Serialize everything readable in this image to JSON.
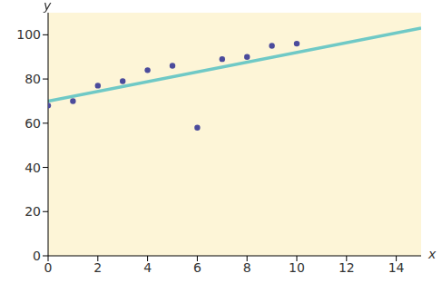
{
  "chart_data": {
    "type": "scatter",
    "x_label": "x",
    "y_label": "y",
    "xlim": [
      0,
      15
    ],
    "xticks": [
      0,
      2,
      4,
      6,
      8,
      10,
      12,
      14
    ],
    "ylim": [
      0,
      110
    ],
    "yticks": [
      0,
      20,
      40,
      60,
      80,
      100
    ],
    "grid": false,
    "series": [
      {
        "type": "scatter",
        "color": "#4b4b9c",
        "marker": "circle",
        "x": [
          0,
          1,
          2,
          3,
          4,
          5,
          6,
          7,
          8,
          9,
          10
        ],
        "values": [
          68,
          70,
          77,
          79,
          84,
          86,
          58,
          89,
          90,
          95,
          96
        ]
      },
      {
        "type": "line",
        "color": "#6fc9c6",
        "line_style": "solid",
        "x": [
          0,
          15
        ],
        "values": [
          70,
          103
        ]
      }
    ]
  }
}
